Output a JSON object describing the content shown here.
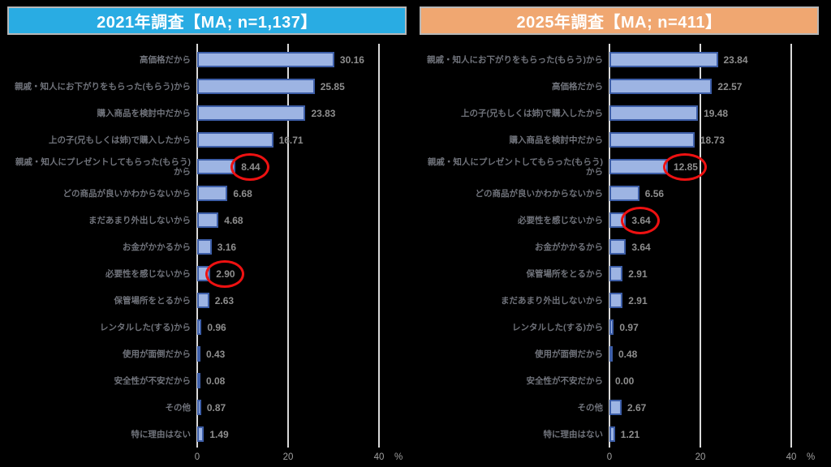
{
  "colors": {
    "background": "#000000",
    "header_border": "#b7b7b7",
    "title_text": "#ffffff",
    "header_bg_2021": "#29ace3",
    "header_bg_2025": "#f0a771",
    "bar_fill": "#9db4e3",
    "bar_border": "#3d5ea8",
    "grid_line": "#d9d9d9",
    "label_text": "#70737b",
    "value_text": "#8e8e8e",
    "tick_text": "#a0a0a0",
    "circle": "#ee1111"
  },
  "axis": {
    "tick_labels": [
      "0",
      "20",
      "40"
    ],
    "unit_label": "%",
    "max": 40
  },
  "chart_data": [
    {
      "type": "bar",
      "orientation": "horizontal",
      "title": "2021年調査【MA; n=1,137】",
      "header_bg": "#29ace3",
      "xlim": [
        0,
        40
      ],
      "xticks": [
        0,
        20,
        40
      ],
      "unit": "%",
      "grid": true,
      "categories": [
        "高価格だから",
        "親戚・知人にお下がりをもらった(もらう)から",
        "購入商品を検討中だから",
        "上の子(兄もしくは姉)で購入したから",
        "親戚・知人にプレゼントしてもらった(もらう)から",
        "どの商品が良いかわからないから",
        "まだあまり外出しないから",
        "お金がかかるから",
        "必要性を感じないから",
        "保管場所をとるから",
        "レンタルした(する)から",
        "使用が面倒だから",
        "安全性が不安だから",
        "その他",
        "特に理由はない"
      ],
      "values": [
        30.16,
        25.85,
        23.83,
        16.71,
        8.44,
        6.68,
        4.68,
        3.16,
        2.9,
        2.63,
        0.96,
        0.43,
        0.08,
        0.87,
        1.49
      ],
      "value_labels": [
        "30.16",
        "25.85",
        "23.83",
        "16.71",
        "8.44",
        "6.68",
        "4.68",
        "3.16",
        "2.90",
        "2.63",
        "0.96",
        "0.43",
        "0.08",
        "0.87",
        "1.49"
      ],
      "circled_indices": [
        4,
        8
      ]
    },
    {
      "type": "bar",
      "orientation": "horizontal",
      "title": "2025年調査【MA; n=411】",
      "header_bg": "#f0a771",
      "xlim": [
        0,
        40
      ],
      "xticks": [
        0,
        20,
        40
      ],
      "unit": "%",
      "grid": true,
      "categories": [
        "親戚・知人にお下がりをもらった(もらう)から",
        "高価格だから",
        "上の子(兄もしくは姉)で購入したから",
        "購入商品を検討中だから",
        "親戚・知人にプレゼントしてもらった(もらう)から",
        "どの商品が良いかわからないから",
        "必要性を感じないから",
        "お金がかかるから",
        "保管場所をとるから",
        "まだあまり外出しないから",
        "レンタルした(する)から",
        "使用が面倒だから",
        "安全性が不安だから",
        "その他",
        "特に理由はない"
      ],
      "values": [
        23.84,
        22.57,
        19.48,
        18.73,
        12.85,
        6.56,
        3.64,
        3.64,
        2.91,
        2.91,
        0.97,
        0.48,
        0.0,
        2.67,
        1.21
      ],
      "value_labels": [
        "23.84",
        "22.57",
        "19.48",
        "18.73",
        "12.85",
        "6.56",
        "3.64",
        "3.64",
        "2.91",
        "2.91",
        "0.97",
        "0.48",
        "0.00",
        "2.67",
        "1.21"
      ],
      "circled_indices": [
        4,
        6
      ]
    }
  ]
}
